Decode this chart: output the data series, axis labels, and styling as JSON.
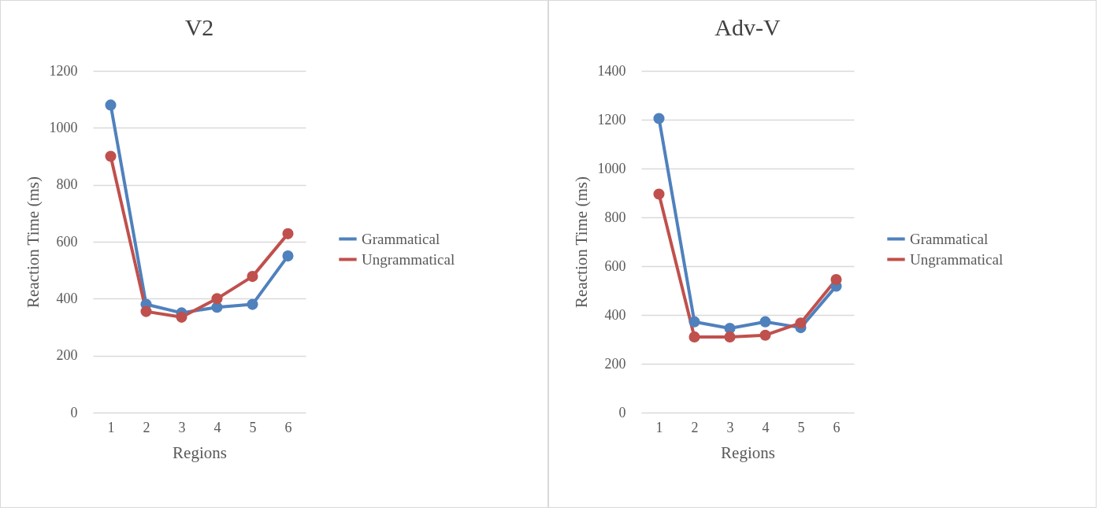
{
  "chart_data": [
    {
      "type": "line",
      "title": "V2",
      "xlabel": "Regions",
      "ylabel": "Reaction Time (ms)",
      "categories": [
        "1",
        "2",
        "3",
        "4",
        "5",
        "6"
      ],
      "ylim": [
        0,
        1200
      ],
      "yticks": [
        0,
        200,
        400,
        600,
        800,
        1000,
        1200
      ],
      "grid": "y",
      "legend": "right",
      "marker": "circle",
      "series": [
        {
          "name": "Grammatical",
          "color": "#4f81bd",
          "values": [
            1080,
            380,
            350,
            370,
            380,
            550
          ]
        },
        {
          "name": "Ungrammatical",
          "color": "#c0504d",
          "values": [
            900,
            355,
            335,
            400,
            478,
            628
          ]
        }
      ]
    },
    {
      "type": "line",
      "title": "Adv-V",
      "xlabel": "Regions",
      "ylabel": "Reaction Time (ms)",
      "categories": [
        "1",
        "2",
        "3",
        "4",
        "5",
        "6"
      ],
      "ylim": [
        0,
        1400
      ],
      "yticks": [
        0,
        200,
        400,
        600,
        800,
        1000,
        1200,
        1400
      ],
      "grid": "y",
      "legend": "right",
      "marker": "circle",
      "series": [
        {
          "name": "Grammatical",
          "color": "#4f81bd",
          "values": [
            1205,
            372,
            345,
            372,
            348,
            518
          ]
        },
        {
          "name": "Ungrammatical",
          "color": "#c0504d",
          "values": [
            895,
            310,
            310,
            317,
            367,
            545
          ]
        }
      ]
    }
  ]
}
